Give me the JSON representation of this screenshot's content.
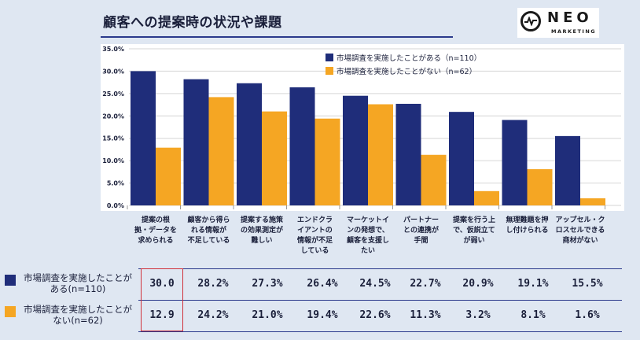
{
  "title": "顧客への提案時の状況や課題",
  "logo": {
    "word": "NEO",
    "sub": "MARKETING"
  },
  "colors": {
    "series1": "#1f2d7a",
    "series2": "#f5a623",
    "grid": "#d6d6d6",
    "highlight": "#d0303a"
  },
  "chart_data": {
    "type": "bar",
    "title": "顧客への提案時の状況や課題",
    "ylim": [
      0,
      35
    ],
    "yticks": [
      0,
      5,
      10,
      15,
      20,
      25,
      30,
      35
    ],
    "ytick_labels": [
      "0.0%",
      "5.0%",
      "10.0%",
      "15.0%",
      "20.0%",
      "25.0%",
      "30.0%",
      "35.0%"
    ],
    "legend_position": "top-right",
    "categories": [
      [
        "提案の根",
        "拠・データを",
        "求められる"
      ],
      [
        "顧客から得ら",
        "れる情報が",
        "不足している"
      ],
      [
        "提案する施策",
        "の効果測定が",
        "難しい"
      ],
      [
        "エンドクラ",
        "イアントの",
        "情報が不足",
        "している"
      ],
      [
        "マーケットイ",
        "ンの発想で、",
        "顧客を支援し",
        "たい"
      ],
      [
        "パートナー",
        "との連携が",
        "手間"
      ],
      [
        "提案を行う上",
        "で、仮説立て",
        "が弱い"
      ],
      [
        "無理難題を押",
        "し付けられる"
      ],
      [
        "アップセル・ク",
        "ロスセルできる",
        "商材がない"
      ]
    ],
    "series": [
      {
        "name": "市場調査を実施したことがある（n=110）",
        "values": [
          30.0,
          28.2,
          27.3,
          26.4,
          24.5,
          22.7,
          20.9,
          19.1,
          15.5
        ]
      },
      {
        "name": "市場調査を実施したことがない（n=62）",
        "values": [
          12.9,
          24.2,
          21.0,
          19.4,
          22.6,
          11.3,
          3.2,
          8.1,
          1.6
        ]
      }
    ]
  },
  "table": {
    "rows": [
      {
        "label_lines": [
          "市場調査を実施したことが",
          "ある(n=110)"
        ],
        "values": [
          "30.0",
          "28.2%",
          "27.3%",
          "26.4%",
          "24.5%",
          "22.7%",
          "20.9%",
          "19.1%",
          "15.5%"
        ]
      },
      {
        "label_lines": [
          "市場調査を実施したことが",
          "ない(n=62)"
        ],
        "values": [
          "12.9",
          "24.2%",
          "21.0%",
          "19.4%",
          "22.6%",
          "11.3%",
          "3.2%",
          "8.1%",
          "1.6%"
        ]
      }
    ]
  }
}
